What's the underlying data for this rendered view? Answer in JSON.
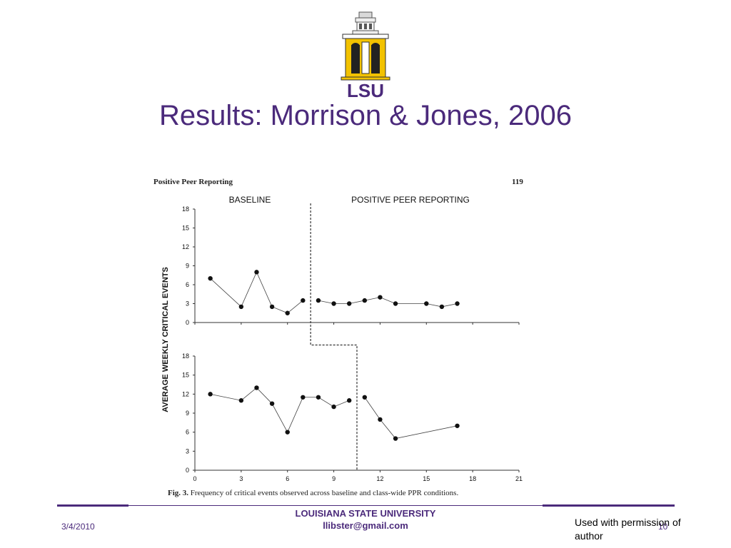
{
  "slide": {
    "title": "Results: Morrison & Jones, 2006",
    "logo_text": "LSU"
  },
  "figure": {
    "header_left": "Positive Peer Reporting",
    "header_right": "119",
    "caption_prefix": "Fig. 3.",
    "caption_text": "Frequency of critical events observed across baseline and class-wide PPR conditions."
  },
  "footer": {
    "university": "LOUISIANA STATE UNIVERSITY",
    "email": "llibster@gmail.com",
    "date": "3/4/2010",
    "slide_number": "10",
    "permission": "Used with permission of author"
  },
  "colors": {
    "accent": "#4b2a7b",
    "gold": "#f2c200"
  },
  "chart_data": {
    "type": "line",
    "ylabel": "AVERAGE WEEKLY CRITICAL EVENTS",
    "phase_labels": [
      "BASELINE",
      "POSITIVE PEER REPORTING"
    ],
    "x_ticks": [
      0,
      3,
      6,
      9,
      12,
      15,
      18,
      21
    ],
    "y_ticks": [
      0,
      3,
      6,
      9,
      12,
      15,
      18
    ],
    "xlim": [
      0,
      21
    ],
    "ylim": [
      0,
      18
    ],
    "panels": [
      {
        "phase_change_x": 7.5,
        "series": [
          {
            "x": [
              1,
              3,
              4,
              5,
              6,
              7
            ],
            "y": [
              7,
              2.5,
              8,
              2.5,
              1.5,
              3.5
            ]
          },
          {
            "x": [
              8,
              9,
              10,
              11,
              12,
              13,
              15,
              16,
              17
            ],
            "y": [
              3.5,
              3,
              3,
              3.5,
              4,
              3,
              3,
              2.5,
              3
            ]
          }
        ]
      },
      {
        "phase_change_x": 10.5,
        "series": [
          {
            "x": [
              1,
              3,
              4,
              5,
              6,
              7,
              8,
              9,
              10
            ],
            "y": [
              12,
              11,
              13,
              10.5,
              6,
              11.5,
              11.5,
              10,
              11
            ]
          },
          {
            "x": [
              11,
              12,
              13,
              17
            ],
            "y": [
              11.5,
              8,
              5,
              7
            ]
          }
        ]
      }
    ]
  }
}
